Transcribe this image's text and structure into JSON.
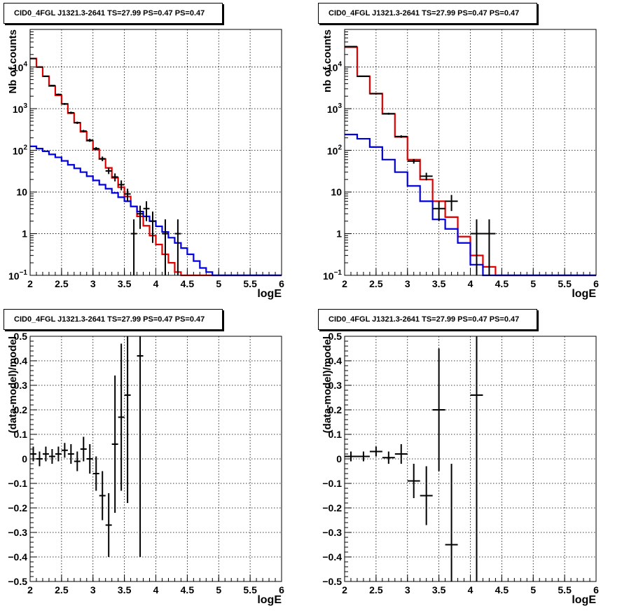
{
  "panels": [
    {
      "title": "CID0_4FGL J1321.3-2641 TS=27.99 PS=0.47 PS=0.47",
      "xlabel": "logE",
      "ylabel": "Nb of counts"
    },
    {
      "title": "CID0_4FGL J1321.3-2641 TS=27.99 PS=0.47 PS=0.47",
      "xlabel": "logE",
      "ylabel": "nb of counts"
    },
    {
      "title": "CID0_4FGL J1321.3-2641 TS=27.99 PS=0.47 PS=0.47",
      "xlabel": "logE",
      "ylabel": "(data-model)/model"
    },
    {
      "title": "CID0_4FGL J1321.3-2641 TS=27.99 PS=0.47 PS=0.47",
      "xlabel": "logE",
      "ylabel": "(data-model)/model"
    }
  ],
  "chart_data": [
    {
      "type": "line",
      "title": "CID0_4FGL J1321.3-2641 TS=27.99 PS=0.47 PS=0.47",
      "xlabel": "logE",
      "ylabel": "Nb of counts",
      "xlim": [
        2,
        6
      ],
      "ylim": [
        0.1,
        80000
      ],
      "ylog": true,
      "grid": true,
      "xticks": [
        "2",
        "2.5",
        "3",
        "3.5",
        "4",
        "4.5",
        "5",
        "5.5",
        "6"
      ],
      "yticks": [
        {
          "v": 0.1,
          "label": "10^-1"
        },
        {
          "v": 1,
          "label": "1"
        },
        {
          "v": 10,
          "label": "10"
        },
        {
          "v": 100,
          "label": "10^2"
        },
        {
          "v": 1000,
          "label": "10^3"
        },
        {
          "v": 10000,
          "label": "10^4"
        }
      ],
      "bin_edges": [
        2.0,
        2.1,
        2.2,
        2.3,
        2.4,
        2.5,
        2.6,
        2.7,
        2.8,
        2.9,
        3.0,
        3.1,
        3.2,
        3.3,
        3.4,
        3.5,
        3.6,
        3.7,
        3.8,
        3.9,
        4.0,
        4.1,
        4.2,
        4.3,
        4.4,
        4.5,
        4.6,
        4.7,
        4.8,
        4.9,
        5.0,
        5.1,
        5.2,
        5.3,
        5.4,
        5.5,
        5.6,
        5.7,
        5.8,
        5.9,
        6.0
      ],
      "series": [
        {
          "color": "#e00000",
          "style": "histogram",
          "values": [
            16000,
            10000,
            6000,
            3500,
            2100,
            1300,
            780,
            460,
            280,
            170,
            105,
            62,
            38,
            22,
            13,
            7.8,
            4.5,
            2.6,
            1.55,
            0.9,
            0.55,
            0.32,
            0.2,
            0.12,
            0.1,
            0.1,
            0.1,
            0.1,
            0.1,
            0.1,
            0.1,
            0.1,
            0.1,
            0.1,
            0.1,
            0.1,
            0.1,
            0.1,
            0.1,
            0.1
          ]
        },
        {
          "color": "#0000e0",
          "style": "histogram",
          "values": [
            125,
            110,
            95,
            80,
            68,
            56,
            45,
            37,
            30,
            24,
            19,
            15,
            12,
            9.5,
            7.5,
            6,
            4.5,
            3.4,
            2.6,
            2.0,
            1.5,
            1.1,
            0.8,
            0.6,
            0.45,
            0.32,
            0.22,
            0.15,
            0.12,
            0.1,
            0.1,
            0.1,
            0.1,
            0.1,
            0.1,
            0.1,
            0.1,
            0.1,
            0.1,
            0.1
          ]
        },
        {
          "color": "#000000",
          "style": "points",
          "points": [
            {
              "x": 2.05,
              "y": 16000,
              "lo": 15700,
              "hi": 16300
            },
            {
              "x": 2.15,
              "y": 10000,
              "lo": 9800,
              "hi": 10200
            },
            {
              "x": 2.25,
              "y": 6000,
              "lo": 5850,
              "hi": 6150
            },
            {
              "x": 2.35,
              "y": 3600,
              "lo": 3480,
              "hi": 3720
            },
            {
              "x": 2.45,
              "y": 2200,
              "lo": 2100,
              "hi": 2300
            },
            {
              "x": 2.55,
              "y": 1300,
              "lo": 1230,
              "hi": 1370
            },
            {
              "x": 2.65,
              "y": 800,
              "lo": 750,
              "hi": 850
            },
            {
              "x": 2.75,
              "y": 460,
              "lo": 430,
              "hi": 490
            },
            {
              "x": 2.85,
              "y": 290,
              "lo": 270,
              "hi": 310
            },
            {
              "x": 2.95,
              "y": 175,
              "lo": 160,
              "hi": 190
            },
            {
              "x": 3.05,
              "y": 110,
              "lo": 100,
              "hi": 120
            },
            {
              "x": 3.15,
              "y": 63,
              "lo": 55,
              "hi": 71
            },
            {
              "x": 3.25,
              "y": 32,
              "lo": 27,
              "hi": 38
            },
            {
              "x": 3.35,
              "y": 23,
              "lo": 18,
              "hi": 28
            },
            {
              "x": 3.45,
              "y": 15,
              "lo": 11,
              "hi": 19
            },
            {
              "x": 3.55,
              "y": 9,
              "lo": 6,
              "hi": 12
            },
            {
              "x": 3.65,
              "y": 1,
              "lo": 0.1,
              "hi": 2.2
            },
            {
              "x": 3.75,
              "y": 3,
              "lo": 1.3,
              "hi": 4.7
            },
            {
              "x": 3.85,
              "y": 4,
              "lo": 2,
              "hi": 6
            },
            {
              "x": 3.95,
              "y": 2,
              "lo": 0.6,
              "hi": 3.4
            },
            {
              "x": 4.15,
              "y": 1,
              "lo": 0.1,
              "hi": 2.2
            },
            {
              "x": 4.35,
              "y": 1,
              "lo": 0.1,
              "hi": 2.2
            }
          ]
        }
      ]
    },
    {
      "type": "line",
      "title": "CID0_4FGL J1321.3-2641 TS=27.99 PS=0.47 PS=0.47",
      "xlabel": "logE",
      "ylabel": "nb of counts",
      "xlim": [
        2,
        6
      ],
      "ylim": [
        0.1,
        80000
      ],
      "ylog": true,
      "grid": true,
      "xticks": [
        "2",
        "2.5",
        "3",
        "3.5",
        "4",
        "4.5",
        "5",
        "5.5",
        "6"
      ],
      "yticks": [
        {
          "v": 0.1,
          "label": "10^-1"
        },
        {
          "v": 1,
          "label": "1"
        },
        {
          "v": 10,
          "label": "10"
        },
        {
          "v": 100,
          "label": "10^2"
        },
        {
          "v": 1000,
          "label": "10^3"
        },
        {
          "v": 10000,
          "label": "10^4"
        }
      ],
      "bin_edges": [
        2.0,
        2.2,
        2.4,
        2.6,
        2.8,
        3.0,
        3.2,
        3.4,
        3.6,
        3.8,
        4.0,
        4.2,
        4.4,
        4.6,
        4.8,
        5.0,
        5.2,
        5.4,
        5.6,
        5.8,
        6.0
      ],
      "series": [
        {
          "color": "#e00000",
          "style": "histogram",
          "values": [
            30000,
            6000,
            2300,
            750,
            210,
            60,
            20,
            6,
            2.5,
            0.85,
            0.3,
            0.16,
            0.1,
            0.1,
            0.1,
            0.1,
            0.1,
            0.1,
            0.1,
            0.1
          ]
        },
        {
          "color": "#0000e0",
          "style": "histogram",
          "values": [
            240,
            190,
            120,
            60,
            30,
            14,
            6,
            2.2,
            1.3,
            0.6,
            0.18,
            0.1,
            0.1,
            0.1,
            0.1,
            0.1,
            0.1,
            0.1,
            0.1,
            0.1
          ]
        },
        {
          "color": "#000000",
          "style": "points",
          "points": [
            {
              "x": 2.1,
              "y": 31000,
              "lo": 30600,
              "hi": 31400
            },
            {
              "x": 2.3,
              "y": 6000,
              "lo": 5850,
              "hi": 6150
            },
            {
              "x": 2.5,
              "y": 2300,
              "lo": 2200,
              "hi": 2400
            },
            {
              "x": 2.7,
              "y": 760,
              "lo": 720,
              "hi": 800
            },
            {
              "x": 2.9,
              "y": 215,
              "lo": 200,
              "hi": 230
            },
            {
              "x": 3.1,
              "y": 55,
              "lo": 48,
              "hi": 62
            },
            {
              "x": 3.3,
              "y": 24,
              "lo": 19,
              "hi": 29
            },
            {
              "x": 3.5,
              "y": 4,
              "lo": 2,
              "hi": 6
            },
            {
              "x": 3.7,
              "y": 6,
              "lo": 3.5,
              "hi": 8.5
            },
            {
              "x": 4.1,
              "y": 1,
              "lo": 0.1,
              "hi": 2.2
            },
            {
              "x": 4.3,
              "y": 1,
              "lo": 0.1,
              "hi": 2.2
            }
          ]
        }
      ]
    },
    {
      "type": "scatter",
      "title": "CID0_4FGL J1321.3-2641 TS=27.99 PS=0.47 PS=0.47",
      "xlabel": "logE",
      "ylabel": "(data-model)/model",
      "xlim": [
        2,
        6
      ],
      "ylim": [
        -0.5,
        0.5
      ],
      "grid": true,
      "xticks": [
        "2",
        "2.5",
        "3",
        "3.5",
        "4",
        "4.5",
        "5",
        "5.5",
        "6"
      ],
      "yticks": [
        -0.5,
        -0.4,
        -0.3,
        -0.2,
        -0.1,
        0,
        0.1,
        0.2,
        0.3,
        0.4,
        0.5
      ],
      "ytick_labels": [
        "−0.5",
        "−0.4",
        "−0.3",
        "−0.2",
        "−0.1",
        "0",
        "0.1",
        "0.2",
        "0.3",
        "0.4",
        "0.5"
      ],
      "xhalf": 0.05,
      "points": [
        {
          "x": 2.05,
          "y": 0.02,
          "err": 0.03
        },
        {
          "x": 2.15,
          "y": 0.0,
          "err": 0.03
        },
        {
          "x": 2.25,
          "y": 0.02,
          "err": 0.03
        },
        {
          "x": 2.35,
          "y": 0.01,
          "err": 0.03
        },
        {
          "x": 2.45,
          "y": 0.02,
          "err": 0.03
        },
        {
          "x": 2.55,
          "y": 0.035,
          "err": 0.03
        },
        {
          "x": 2.65,
          "y": 0.02,
          "err": 0.04
        },
        {
          "x": 2.75,
          "y": -0.01,
          "err": 0.04
        },
        {
          "x": 2.85,
          "y": 0.04,
          "err": 0.05
        },
        {
          "x": 2.95,
          "y": 0.0,
          "err": 0.06
        },
        {
          "x": 3.05,
          "y": -0.06,
          "err": 0.07
        },
        {
          "x": 3.15,
          "y": -0.15,
          "err": 0.1
        },
        {
          "x": 3.25,
          "y": -0.27,
          "err": 0.13
        },
        {
          "x": 3.35,
          "y": 0.06,
          "err": 0.28
        },
        {
          "x": 3.45,
          "y": 0.17,
          "err": 0.3
        },
        {
          "x": 3.55,
          "y": 0.26,
          "err": 0.44
        },
        {
          "x": 3.75,
          "y": 0.42,
          "err": 0.82
        }
      ]
    },
    {
      "type": "scatter",
      "title": "CID0_4FGL J1321.3-2641 TS=27.99 PS=0.47 PS=0.47",
      "xlabel": "logE",
      "ylabel": "(data-model)/model",
      "xlim": [
        2,
        6
      ],
      "ylim": [
        -0.5,
        0.5
      ],
      "grid": true,
      "xticks": [
        "2",
        "2.5",
        "3",
        "3.5",
        "4",
        "4.5",
        "5",
        "5.5",
        "6"
      ],
      "yticks": [
        -0.5,
        -0.4,
        -0.3,
        -0.2,
        -0.1,
        0,
        0.1,
        0.2,
        0.3,
        0.4,
        0.5
      ],
      "ytick_labels": [
        "−0.5",
        "−0.4",
        "−0.3",
        "−0.2",
        "−0.1",
        "0",
        "0.1",
        "0.2",
        "0.3",
        "0.4",
        "0.5"
      ],
      "xhalf": 0.1,
      "points": [
        {
          "x": 2.1,
          "y": 0.01,
          "err": 0.02
        },
        {
          "x": 2.3,
          "y": 0.01,
          "err": 0.02
        },
        {
          "x": 2.5,
          "y": 0.03,
          "err": 0.02
        },
        {
          "x": 2.7,
          "y": 0.005,
          "err": 0.025
        },
        {
          "x": 2.9,
          "y": 0.02,
          "err": 0.04
        },
        {
          "x": 3.1,
          "y": -0.09,
          "err": 0.07
        },
        {
          "x": 3.3,
          "y": -0.15,
          "err": 0.12
        },
        {
          "x": 3.5,
          "y": 0.2,
          "err": 0.25
        },
        {
          "x": 3.7,
          "y": -0.35,
          "err": 0.33
        },
        {
          "x": 4.1,
          "y": 0.26,
          "err": 0.8
        }
      ]
    }
  ]
}
